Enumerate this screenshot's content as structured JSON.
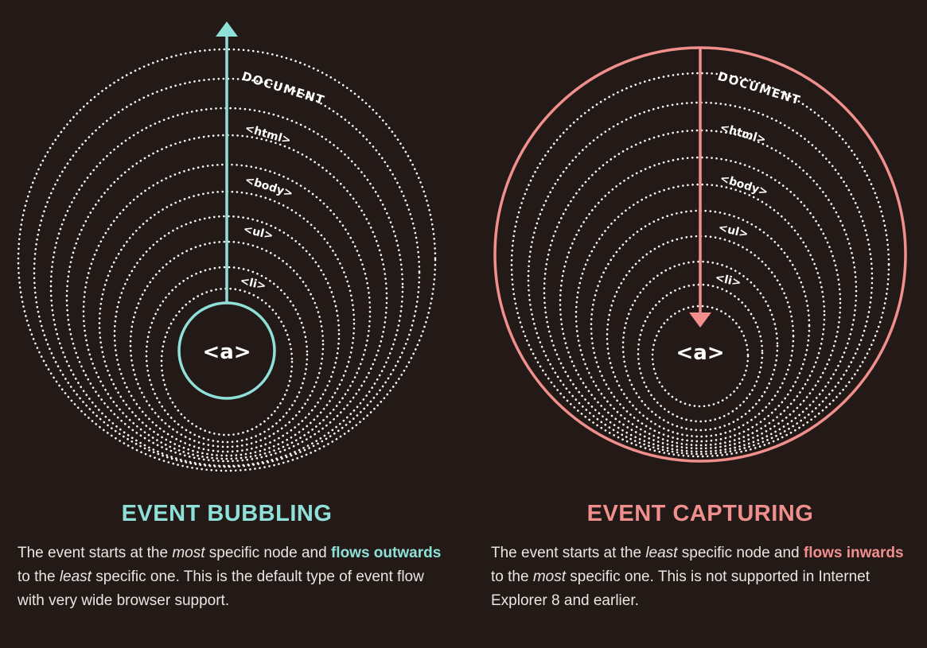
{
  "colors": {
    "background": "#231a18",
    "bubbling": "#8fe0d8",
    "capturing": "#f08f8c",
    "rings": "#ffffff",
    "text": "#e9e5e0"
  },
  "bubbling": {
    "title": "EVENT BUBBLING",
    "ring_labels": [
      "DOCUMENT",
      "<html>",
      "<body>",
      "<ul>",
      "<li>"
    ],
    "center_label": "<a>",
    "desc": {
      "p1": "The event starts at the ",
      "em1": "most",
      "p2": " specific node and ",
      "b1": "flows outwards",
      "p3": " to the ",
      "em2": "least",
      "p4": " specific one. This is the default type of event flow with very wide browser support."
    }
  },
  "capturing": {
    "title": "EVENT CAPTURING",
    "ring_labels": [
      "DOCUMENT",
      "<html>",
      "<body>",
      "<ul>",
      "<li>"
    ],
    "center_label": "<a>",
    "desc": {
      "p1": "The event starts at the ",
      "em1": "least",
      "p2": " specific node and ",
      "b1": "flows inwards",
      "p3": " to the ",
      "em2": "most",
      "p4": " specific one. This is not supported in Internet Explorer 8 and earlier."
    }
  }
}
